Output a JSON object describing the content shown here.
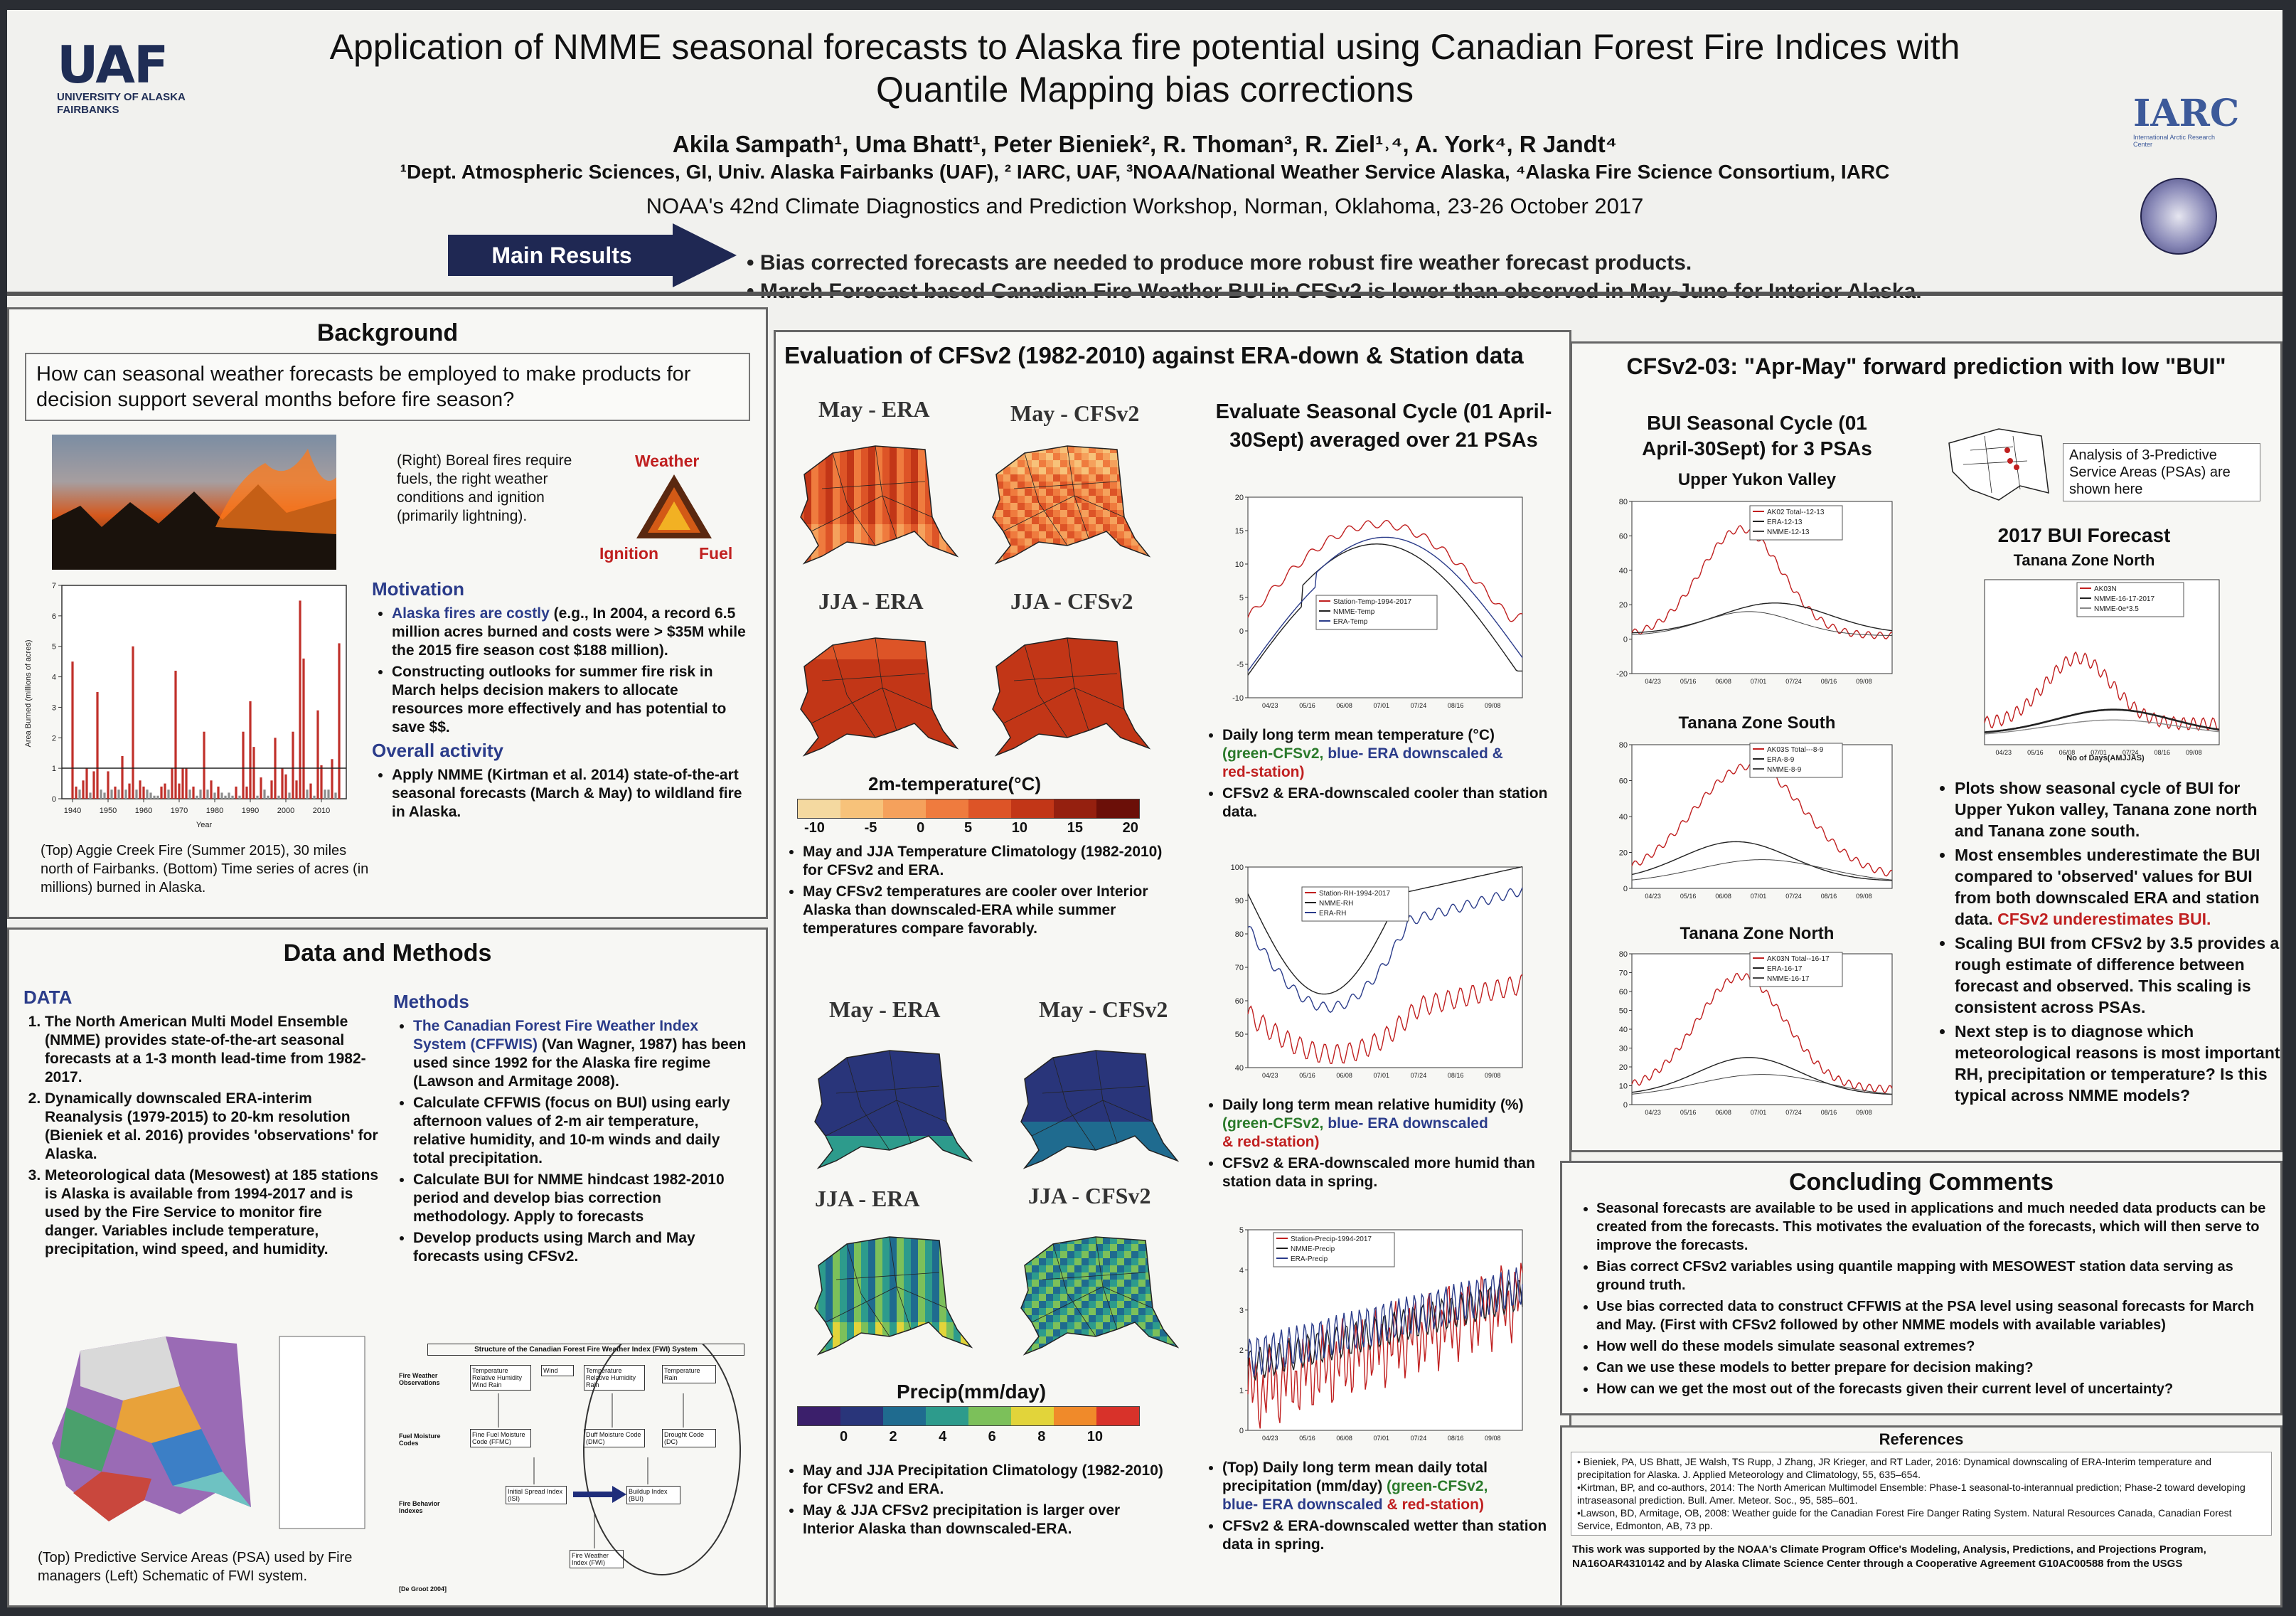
{
  "header": {
    "uaf_logo": "UAF",
    "uaf_sub1": "UNIVERSITY OF ALASKA",
    "uaf_sub2": "FAIRBANKS",
    "title_line1": "Application of NMME seasonal forecasts to Alaska fire potential using Canadian Forest Fire Indices with",
    "title_line2": "Quantile Mapping bias corrections",
    "authors": "Akila Sampath¹, Uma Bhatt¹, Peter Bieniek², R. Thoman³, R. Ziel¹˒⁴, A. York⁴, R Jandt⁴",
    "affiliations": "¹Dept. Atmospheric Sciences, GI, Univ. Alaska Fairbanks (UAF), ² IARC, UAF, ³NOAA/National Weather Service Alaska, ⁴Alaska Fire Science Consortium, IARC",
    "workshop": "NOAA's 42nd Climate Diagnostics and Prediction Workshop, Norman, Oklahoma, 23-26 October 2017",
    "iarc_logo": "IARC",
    "iarc_sub": "International Arctic Research Center"
  },
  "main_results": {
    "label": "Main Results",
    "items": [
      "• Bias corrected forecasts are needed to produce more robust fire weather forecast products.",
      "• March Forecast based Canadian Fire Weather BUI in CFSv2  is lower than observed in May-June for Interior Alaska."
    ]
  },
  "background": {
    "heading": "Background",
    "question": "How can seasonal weather forecasts be employed to make products for decision support several months before fire season?",
    "right_caption": "(Right) Boreal fires require fuels, the right weather conditions and ignition (primarily lightning).",
    "triangle": {
      "weather": "Weather",
      "ignition": "Ignition",
      "fuel": "Fuel"
    },
    "motivation_heading": "Motivation",
    "motivation_1a": "Alaska fires are costly",
    "motivation_1b": " (e.g., In 2004, a record 6.5 million acres burned and costs were > $35M while the 2015 fire season cost $188 million).",
    "motivation_2": "Constructing outlooks for summer fire risk in March helps decision makers to allocate resources more effectively and has potential to save $$.",
    "overall_heading": "Overall activity",
    "overall_1": "Apply NMME (Kirtman et al. 2014) state-of-the-art seasonal forecasts (March & May) to wildland fire in Alaska.",
    "caption": "(Top) Aggie Creek Fire (Summer 2015), 30 miles north of Fairbanks.  (Bottom) Time series of acres (in millions)  burned in Alaska.",
    "ylabel": "Area Burned (millions of acres)",
    "xlabel": "Year",
    "xticks": [
      "1940",
      "1950",
      "1960",
      "1970",
      "1980",
      "1990",
      "2000",
      "2010"
    ],
    "yticks": [
      "0",
      "1",
      "2",
      "3",
      "4",
      "5",
      "6",
      "7"
    ]
  },
  "chart_data": {
    "type": "bar",
    "ylabel": "Area Burned (millions of acres)",
    "xlabel": "Year",
    "ylim": [
      0,
      7
    ],
    "x": [
      1940,
      1941,
      1942,
      1943,
      1944,
      1945,
      1946,
      1947,
      1948,
      1949,
      1950,
      1951,
      1952,
      1953,
      1954,
      1955,
      1956,
      1957,
      1958,
      1959,
      1960,
      1961,
      1962,
      1963,
      1964,
      1965,
      1966,
      1967,
      1968,
      1969,
      1970,
      1971,
      1972,
      1973,
      1974,
      1975,
      1976,
      1977,
      1978,
      1979,
      1980,
      1981,
      1982,
      1983,
      1984,
      1985,
      1986,
      1987,
      1988,
      1989,
      1990,
      1991,
      1992,
      1993,
      1994,
      1995,
      1996,
      1997,
      1998,
      1999,
      2000,
      2001,
      2002,
      2003,
      2004,
      2005,
      2006,
      2007,
      2008,
      2009,
      2010,
      2011,
      2012,
      2013,
      2014,
      2015
    ],
    "values": [
      4.5,
      0.4,
      0.3,
      0.6,
      1.0,
      0.2,
      0.9,
      3.5,
      0.3,
      0.2,
      0.9,
      0.3,
      0.4,
      0.3,
      1.4,
      0.3,
      0.5,
      5.0,
      0.3,
      0.6,
      0.4,
      0.3,
      0.2,
      0.1,
      0.1,
      0.4,
      0.5,
      0.3,
      1.0,
      4.2,
      0.5,
      1.0,
      1.0,
      0.3,
      0.4,
      0.1,
      0.3,
      2.2,
      0.3,
      0.6,
      0.2,
      0.4,
      0.2,
      0.1,
      0.2,
      0.1,
      0.4,
      0.1,
      2.2,
      0.4,
      3.2,
      1.7,
      0.1,
      0.7,
      0.3,
      0.1,
      0.6,
      2.0,
      0.1,
      1.0,
      0.8,
      0.2,
      2.2,
      0.6,
      6.5,
      4.6,
      0.3,
      0.5,
      0.1,
      2.9,
      1.1,
      0.3,
      0.3,
      1.3,
      0.2,
      5.1
    ]
  },
  "data_methods": {
    "heading": "Data and Methods",
    "data_heading": "DATA",
    "data_1": "The North American Multi Model Ensemble (NMME) provides state-of-the-art seasonal forecasts at a 1-3 month lead-time from 1982-2017.",
    "data_2": "Dynamically downscaled ERA-interim Reanalysis (1979-2015) to 20-km resolution (Bieniek et al. 2016) provides 'observations' for Alaska.",
    "data_3": "Meteorological data (Mesowest) at 185 stations is Alaska is available from 1994-2017 and  is used by the Fire Service to monitor fire danger.  Variables include temperature, precipitation, wind speed, and humidity.",
    "methods_heading": "Methods",
    "methods_1a": "The Canadian Forest Fire Weather Index System (CFFWIS)",
    "methods_1b": " (Van Wagner, 1987) has been used since 1992 for the Alaska fire regime (Lawson and Armitage 2008).",
    "methods_2": "Calculate CFFWIS (focus on BUI) using early afternoon values of 2-m air temperature, relative humidity, and 10-m winds and daily total precipitation.",
    "methods_3": "Calculate BUI for NMME hindcast 1982-2010 period and develop bias correction methodology. Apply to forecasts",
    "methods_4": "Develop products using March and May forecasts using CFSv2.",
    "psa_caption": "(Top) Predictive Service Areas (PSA) used by Fire managers (Left) Schematic of FWI system.",
    "fwi_title": "Structure of the Canadian Forest Fire Weather Index (FWI) System",
    "fwi_left_1": "Fire Weather Observations",
    "fwi_left_2": "Fuel Moisture Codes",
    "fwi_left_3": "Fire Behavior Indexes",
    "fwi_box_temp1": "Temperature Relative Humidity Wind Rain",
    "fwi_box_wind": "Wind",
    "fwi_box_temp2": "Temperature Relative Humidity Rain",
    "fwi_box_temp3": "Temperature Rain",
    "fwi_box_ffmc": "Fine Fuel Moisture Code (FFMC)",
    "fwi_box_dmc": "Duff Moisture Code (DMC)",
    "fwi_box_dc": "Drought Code (DC)",
    "fwi_box_isi": "Initial Spread Index (ISI)",
    "fwi_box_bui": "Buildup Index (BUI)",
    "fwi_box_fwi": "Fire Weather Index (FWI)",
    "fwi_credit": "[De Groot 2004]"
  },
  "evaluation": {
    "heading": "Evaluation of CFSv2 (1982-2010) against ERA-down & Station data",
    "map_may_era": "May - ERA",
    "map_may_cfs": "May - CFSv2",
    "map_jja_era": "JJA - ERA",
    "map_jja_cfs": "JJA - CFSv2",
    "temp_cbar_title": "2m-temperature(°C)",
    "temp_cbar_ticks": [
      "-10",
      "-5",
      "0",
      "5",
      "10",
      "15",
      "20"
    ],
    "temp_bullet_1": "May and JJA Temperature Climatology (1982-2010) for CFSv2 and ERA.",
    "temp_bullet_2": "May CFSv2 temperatures are cooler over Interior Alaska than downscaled-ERA while summer temperatures compare favorably.",
    "precip_cbar_title": "Precip(mm/day)",
    "precip_cbar_ticks": [
      "0",
      "2",
      "4",
      "6",
      "8",
      "10"
    ],
    "precip_bullet_1": "May and JJA Precipitation Climatology (1982-2010) for CFSv2 and ERA.",
    "precip_bullet_2": "May & JJA CFSv2 precipitation is larger over Interior Alaska than downscaled-ERA.",
    "cycle_heading": "Evaluate Seasonal Cycle (01 April-30Sept) averaged over 21 PSAs",
    "x_ticks": [
      "04/23",
      "05/16",
      "06/08",
      "07/01",
      "07/24",
      "08/16",
      "09/08"
    ],
    "temp_yticks": [
      "20",
      "15",
      "10",
      "5",
      "0",
      "-5",
      "-10"
    ],
    "temp_legend": [
      "Station-Temp-1994-2017",
      "NMME-Temp",
      "ERA-Temp"
    ],
    "temp_note_1": "Daily long term mean temperature (°C)",
    "temp_note_green": "(green-CFSv2,",
    "temp_note_blue": " blue- ERA downscaled &",
    "temp_note_red": "red-station)",
    "temp_note_2": "CFSv2 & ERA-downscaled cooler than station data.",
    "rh_yticks": [
      "100",
      "90",
      "80",
      "70",
      "60",
      "50",
      "40"
    ],
    "rh_legend": [
      "Station-RH-1994-2017",
      "NMME-RH",
      "ERA-RH"
    ],
    "rh_note_1": "Daily long term mean relative humidity (%)",
    "rh_note_green": "(green-CFSv2,",
    "rh_note_blue": " blue- ERA downscaled",
    "rh_note_red": "& red-station)",
    "rh_note_2": "CFSv2 & ERA-downscaled more humid than station data in spring.",
    "pr_yticks": [
      "5",
      "4",
      "3",
      "2",
      "1",
      "0"
    ],
    "pr_legend": [
      "Station-Precip-1994-2017",
      "NMME-Precip",
      "ERA-Precip"
    ],
    "pr_note_1": "(Top) Daily long term mean daily total precipitation (mm/day)",
    "pr_note_green": "(green-CFSv2,",
    "pr_note_blue": "blue- ERA downscaled",
    "pr_note_red": "& red-station)",
    "pr_note_2": "CFSv2 & ERA-downscaled wetter than station data in spring."
  },
  "cfsv2": {
    "heading": "CFSv2-03: \"Apr-May\" forward prediction with low \"BUI\"",
    "bui_heading": "BUI Seasonal Cycle (01 April-30Sept) for 3 PSAs",
    "psa_note": "Analysis of 3-Predictive Service Areas (PSAs) are shown here",
    "chart1_title": "Upper Yukon Valley",
    "chart1_legend": [
      "AK02 Total--12-13",
      "ERA-12-13",
      "NMME-12-13"
    ],
    "chart1_yticks": [
      "80",
      "60",
      "40",
      "20",
      "0",
      "-20"
    ],
    "chart2_title": "Tanana Zone South",
    "chart2_legend": [
      "AK03S Total---8-9",
      "ERA-8-9",
      "NMME-8-9"
    ],
    "chart2_yticks": [
      "80",
      "60",
      "40",
      "20",
      "0"
    ],
    "chart3_title": "Tanana Zone North",
    "chart3_legend": [
      "AK03N Total--16-17",
      "ERA-16-17",
      "NMME-16-17"
    ],
    "chart3_yticks": [
      "80",
      "70",
      "60",
      "50",
      "40",
      "30",
      "20",
      "10",
      "0"
    ],
    "x_ticks": [
      "04/23",
      "05/16",
      "06/08",
      "07/01",
      "07/24",
      "08/16",
      "09/08"
    ],
    "forecast_title": "2017 BUI Forecast",
    "forecast_sub": "Tanana Zone North",
    "forecast_legend": [
      "AK03N",
      "NMME-16-17-2017",
      "NMME-0e*3.5"
    ],
    "forecast_xlabel": "No of Days(AMJJAS)",
    "bullet_1": "Plots show seasonal cycle of BUI for Upper Yukon valley, Tanana zone north and Tanana zone south.",
    "bullet_2a": "Most ensembles underestimate the BUI compared to 'observed' values for BUI from both downscaled ERA and station data. ",
    "bullet_2b": "CFSv2 underestimates BUI.",
    "bullet_3": "Scaling BUI from CFSv2 by 3.5 provides a rough estimate of difference between forecast and observed. This scaling is consistent across PSAs.",
    "bullet_4": "Next step is to diagnose which meteorological reasons is most important, RH, precipitation or temperature? Is this typical across NMME models?"
  },
  "concluding": {
    "heading": "Concluding Comments",
    "items": [
      "Seasonal forecasts are available to be used in applications and much needed data products can be created from the forecasts. This motivates the evaluation of the forecasts, which will then serve to improve the forecasts.",
      "Bias correct CFSv2 variables using quantile mapping with MESOWEST station data serving as ground truth.",
      "Use bias corrected data to construct CFFWIS at the PSA level using seasonal forecasts for March and May. (First with CFSv2 followed by other NMME models with available variables)",
      "How well do these models simulate seasonal extremes?",
      "Can we use these models to better prepare for decision making?",
      "How can we get the most out of the forecasts given their current level of uncertainty?"
    ]
  },
  "references": {
    "heading": "References",
    "items": [
      "• Bieniek, PA, US Bhatt, JE Walsh, TS Rupp, J Zhang, JR Krieger, and RT Lader, 2016: Dynamical downscaling of ERA-Interim temperature and precipitation for Alaska. J. Applied Meteorology and Climatology, 55, 635–654.",
      "•Kirtman, BP, and co-authors, 2014: The North American Multimodel Ensemble: Phase-1 seasonal-to-interannual prediction; Phase-2 toward developing intraseasonal prediction. Bull. Amer. Meteor. Soc., 95, 585–601.",
      "•Lawson, BD, Armitage, OB, 2008: Weather guide for the Canadian Forest Fire Danger Rating System. Natural Resources Canada, Canadian Forest Service, Edmonton, AB, 73 pp."
    ],
    "ack": "This work was supported by the NOAA's Climate Program Office's Modeling, Analysis, Predictions, and Projections Program, NA16OAR4310142 and by Alaska Climate Science Center through a Cooperative Agreement G10AC00588 from the USGS"
  }
}
